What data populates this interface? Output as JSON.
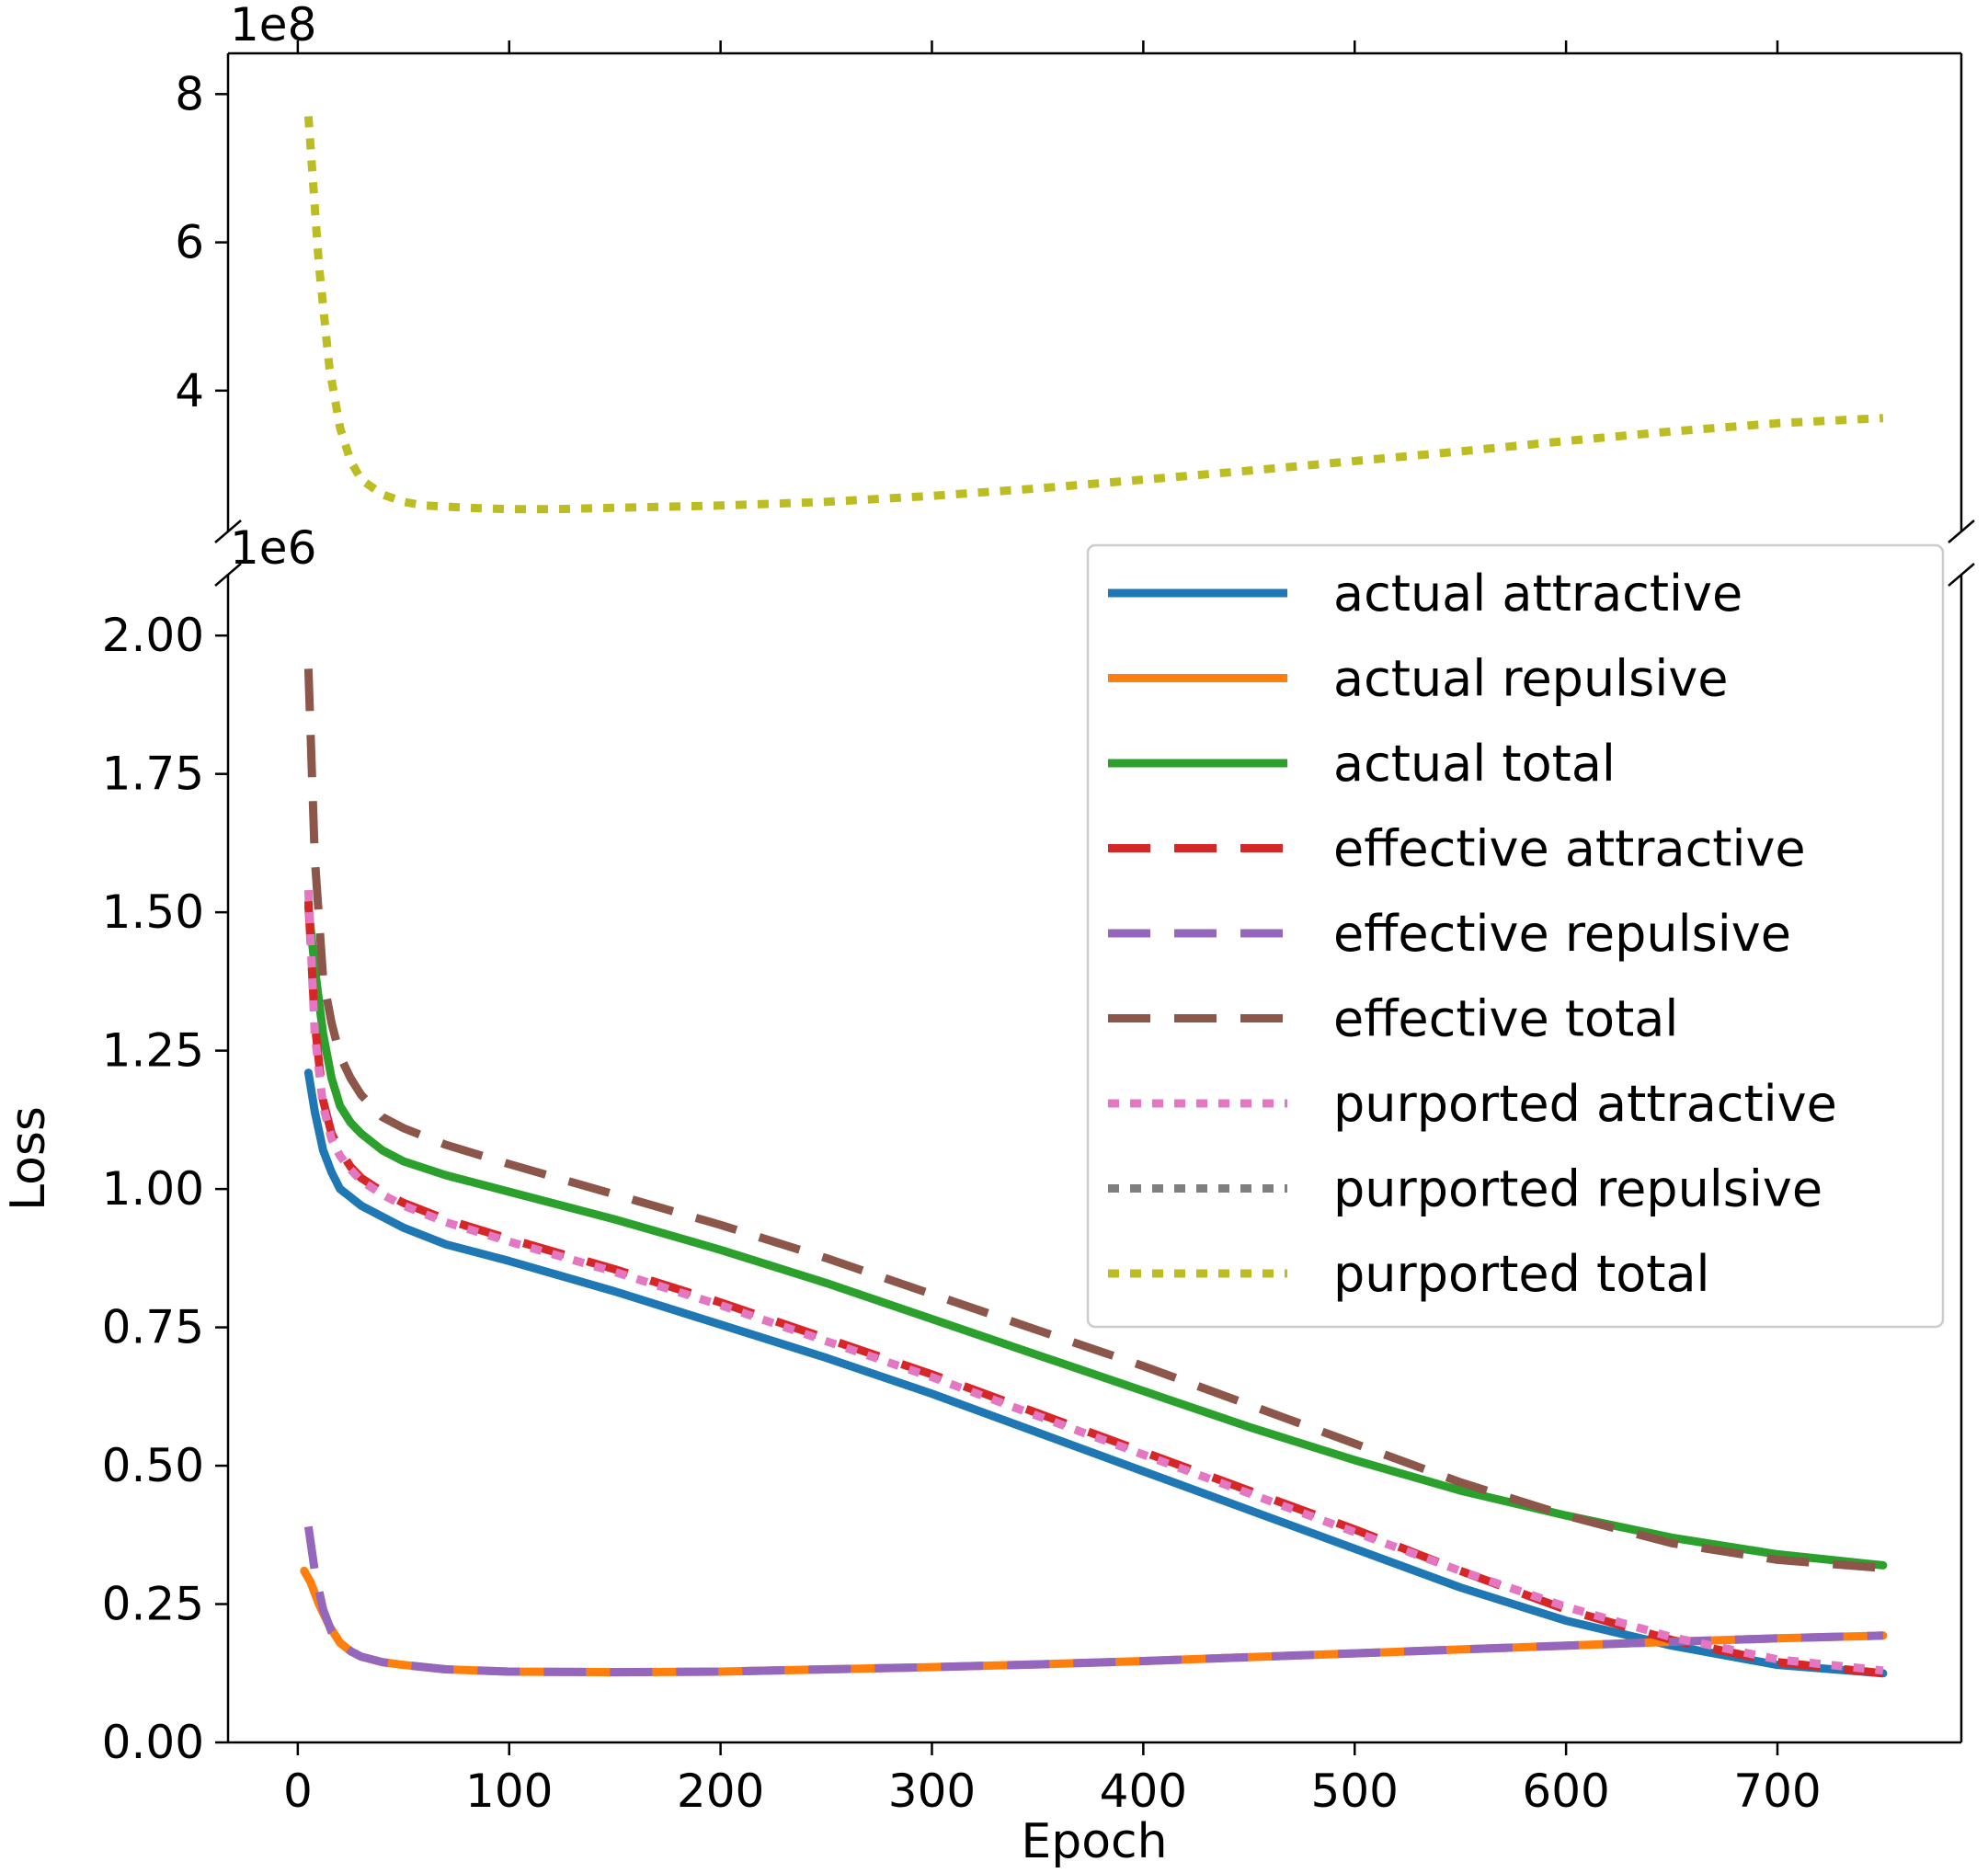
{
  "chart_data": {
    "type": "line",
    "layout": "broken-y-axis",
    "xlabel": "Epoch",
    "ylabel": "Loss",
    "xlim": [
      -33,
      787
    ],
    "xticks": [
      0,
      100,
      200,
      300,
      400,
      500,
      600,
      700
    ],
    "top_panel": {
      "offset_label": "1e8",
      "ylim": [
        2.1,
        8.55
      ],
      "yticks": [
        4,
        6,
        8
      ],
      "series": [
        {
          "name": "purported total",
          "color": "#bcbd22",
          "style": "dotted",
          "x": [
            5,
            10,
            15,
            20,
            25,
            30,
            40,
            50,
            60,
            80,
            100,
            120,
            150,
            200,
            250,
            300,
            350,
            400,
            450,
            500,
            550,
            600,
            650,
            700,
            750
          ],
          "values": [
            7.7,
            5.7,
            4.3,
            3.5,
            3.05,
            2.8,
            2.6,
            2.5,
            2.45,
            2.42,
            2.4,
            2.4,
            2.42,
            2.45,
            2.5,
            2.58,
            2.68,
            2.8,
            2.92,
            3.05,
            3.18,
            3.32,
            3.45,
            3.56,
            3.63
          ]
        }
      ]
    },
    "bottom_panel": {
      "offset_label": "1e6",
      "ylim": [
        0,
        2.11
      ],
      "yticks": [
        0.0,
        0.25,
        0.5,
        0.75,
        1.0,
        1.25,
        1.5,
        1.75,
        2.0
      ],
      "ytick_labels": [
        "0.00",
        "0.25",
        "0.50",
        "0.75",
        "1.00",
        "1.25",
        "1.50",
        "1.75",
        "2.00"
      ],
      "series": [
        {
          "name": "actual attractive",
          "color": "#1f77b4",
          "style": "solid",
          "x": [
            5,
            8,
            12,
            16,
            20,
            25,
            30,
            40,
            50,
            70,
            100,
            150,
            200,
            250,
            300,
            350,
            400,
            450,
            500,
            550,
            600,
            650,
            700,
            750
          ],
          "values": [
            1.21,
            1.14,
            1.07,
            1.03,
            1.0,
            0.985,
            0.97,
            0.95,
            0.93,
            0.9,
            0.87,
            0.815,
            0.755,
            0.695,
            0.63,
            0.56,
            0.49,
            0.42,
            0.35,
            0.28,
            0.22,
            0.175,
            0.14,
            0.125
          ]
        },
        {
          "name": "actual repulsive",
          "color": "#ff7f0e",
          "style": "solid",
          "x": [
            3,
            6,
            10,
            15,
            20,
            25,
            30,
            40,
            50,
            70,
            100,
            150,
            200,
            250,
            300,
            350,
            400,
            450,
            500,
            550,
            600,
            650,
            700,
            750
          ],
          "values": [
            0.31,
            0.29,
            0.25,
            0.21,
            0.18,
            0.165,
            0.155,
            0.145,
            0.14,
            0.132,
            0.128,
            0.127,
            0.128,
            0.132,
            0.136,
            0.141,
            0.147,
            0.154,
            0.161,
            0.168,
            0.175,
            0.182,
            0.188,
            0.193
          ]
        },
        {
          "name": "actual total",
          "color": "#2ca02c",
          "style": "solid",
          "x": [
            5,
            8,
            12,
            16,
            20,
            25,
            30,
            40,
            50,
            70,
            100,
            150,
            200,
            250,
            300,
            350,
            400,
            450,
            500,
            550,
            600,
            650,
            700,
            750
          ],
          "values": [
            1.51,
            1.4,
            1.28,
            1.2,
            1.15,
            1.12,
            1.1,
            1.07,
            1.05,
            1.025,
            0.995,
            0.945,
            0.89,
            0.83,
            0.765,
            0.7,
            0.635,
            0.57,
            0.51,
            0.455,
            0.41,
            0.37,
            0.34,
            0.32
          ]
        },
        {
          "name": "effective attractive",
          "color": "#d62728",
          "style": "dashed",
          "x": [
            5,
            8,
            12,
            16,
            20,
            25,
            30,
            40,
            50,
            70,
            100,
            150,
            200,
            250,
            300,
            350,
            400,
            450,
            500,
            550,
            600,
            650,
            700,
            750
          ],
          "values": [
            1.52,
            1.3,
            1.16,
            1.1,
            1.07,
            1.04,
            1.02,
            0.995,
            0.975,
            0.945,
            0.91,
            0.855,
            0.795,
            0.73,
            0.665,
            0.595,
            0.525,
            0.455,
            0.385,
            0.31,
            0.24,
            0.185,
            0.145,
            0.125
          ]
        },
        {
          "name": "effective repulsive",
          "color": "#9467bd",
          "style": "dashed",
          "x": [
            5,
            8,
            12,
            16,
            20,
            25,
            30,
            40,
            50,
            70,
            100,
            150,
            200,
            250,
            300,
            350,
            400,
            450,
            500,
            550,
            600,
            650,
            700,
            750
          ],
          "values": [
            0.39,
            0.31,
            0.24,
            0.2,
            0.18,
            0.165,
            0.155,
            0.145,
            0.14,
            0.132,
            0.128,
            0.127,
            0.128,
            0.132,
            0.136,
            0.141,
            0.147,
            0.154,
            0.161,
            0.168,
            0.175,
            0.182,
            0.188,
            0.193
          ]
        },
        {
          "name": "effective total",
          "color": "#8c564b",
          "style": "dashed",
          "x": [
            5,
            8,
            12,
            16,
            20,
            25,
            30,
            40,
            50,
            70,
            100,
            150,
            200,
            250,
            300,
            350,
            400,
            450,
            500,
            550,
            600,
            650,
            700,
            750
          ],
          "values": [
            1.94,
            1.6,
            1.38,
            1.3,
            1.24,
            1.2,
            1.17,
            1.13,
            1.11,
            1.08,
            1.045,
            0.99,
            0.935,
            0.875,
            0.81,
            0.745,
            0.68,
            0.61,
            0.54,
            0.47,
            0.41,
            0.36,
            0.33,
            0.315
          ]
        },
        {
          "name": "purported attractive",
          "color": "#e377c2",
          "style": "dotted",
          "x": [
            5,
            8,
            12,
            16,
            20,
            25,
            30,
            40,
            50,
            70,
            100,
            150,
            200,
            250,
            300,
            350,
            400,
            450,
            500,
            550,
            600,
            650,
            700,
            750
          ],
          "values": [
            1.54,
            1.28,
            1.15,
            1.09,
            1.06,
            1.035,
            1.015,
            0.99,
            0.97,
            0.94,
            0.905,
            0.85,
            0.79,
            0.725,
            0.66,
            0.59,
            0.52,
            0.45,
            0.38,
            0.31,
            0.245,
            0.19,
            0.15,
            0.13
          ]
        },
        {
          "name": "purported repulsive",
          "color": "#7f7f7f",
          "style": "dotted",
          "x": [],
          "values": []
        },
        {
          "name": "purported total",
          "color": "#bcbd22",
          "style": "dotted",
          "x": [],
          "values": []
        }
      ]
    },
    "legend": {
      "placement": "upper-right of lower panel",
      "entries": [
        {
          "label": "actual attractive",
          "color": "#1f77b4",
          "style": "solid"
        },
        {
          "label": "actual repulsive",
          "color": "#ff7f0e",
          "style": "solid"
        },
        {
          "label": "actual total",
          "color": "#2ca02c",
          "style": "solid"
        },
        {
          "label": "effective attractive",
          "color": "#d62728",
          "style": "dashed"
        },
        {
          "label": "effective repulsive",
          "color": "#9467bd",
          "style": "dashed"
        },
        {
          "label": "effective total",
          "color": "#8c564b",
          "style": "dashed"
        },
        {
          "label": "purported attractive",
          "color": "#e377c2",
          "style": "dotted"
        },
        {
          "label": "purported repulsive",
          "color": "#7f7f7f",
          "style": "dotted"
        },
        {
          "label": "purported total",
          "color": "#bcbd22",
          "style": "dotted"
        }
      ]
    }
  }
}
